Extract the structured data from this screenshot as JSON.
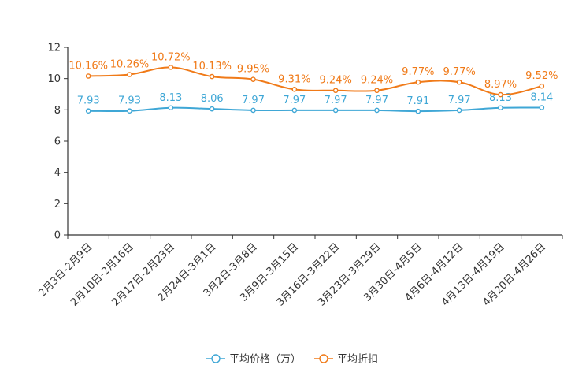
{
  "chart_data": {
    "type": "line",
    "title": "",
    "xlabel": "",
    "ylabel": "",
    "ylim": [
      0,
      12
    ],
    "yticks": [
      0,
      2,
      4,
      6,
      8,
      10,
      12
    ],
    "grid": false,
    "legend_position": "bottom-center",
    "categories": [
      "2月3日-2月9日",
      "2月10日-2月16日",
      "2月17日-2月23日",
      "2月24日-3月1日",
      "3月2日-3月8日",
      "3月9日-3月15日",
      "3月16日-3月22日",
      "3月23日-3月29日",
      "3月30日-4月5日",
      "4月6日-4月12日",
      "4月13日-4月19日",
      "4月20日-4月26日"
    ],
    "series": [
      {
        "name": "平均价格（万）",
        "color": "#3fa7d6",
        "values": [
          7.93,
          7.93,
          8.13,
          8.06,
          7.97,
          7.97,
          7.97,
          7.97,
          7.91,
          7.97,
          8.13,
          8.14
        ],
        "labels": [
          "7.93",
          "7.93",
          "8.13",
          "8.06",
          "7.97",
          "7.97",
          "7.97",
          "7.97",
          "7.91",
          "7.97",
          "8.13",
          "8.14"
        ]
      },
      {
        "name": "平均折扣",
        "color": "#f07a18",
        "values": [
          10.16,
          10.26,
          10.72,
          10.13,
          9.95,
          9.31,
          9.24,
          9.24,
          9.77,
          9.77,
          8.97,
          9.52
        ],
        "labels": [
          "10.16%",
          "10.26%",
          "10.72%",
          "10.13%",
          "9.95%",
          "9.31%",
          "9.24%",
          "9.24%",
          "9.77%",
          "9.77%",
          "8.97%",
          "9.52%"
        ]
      }
    ]
  }
}
